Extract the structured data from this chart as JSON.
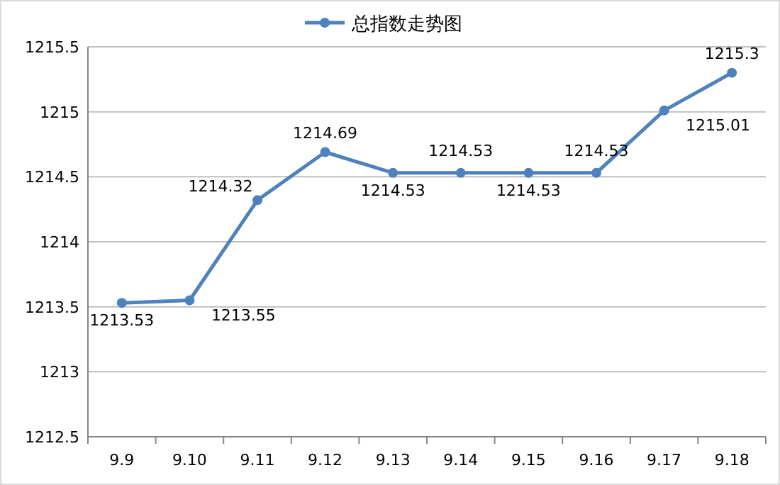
{
  "chart_data": {
    "type": "line",
    "categories": [
      "9.9",
      "9.10",
      "9.11",
      "9.12",
      "9.13",
      "9.14",
      "9.15",
      "9.16",
      "9.17",
      "9.18"
    ],
    "series": [
      {
        "name": "总指数走势图",
        "color": "#4f81bd",
        "values": [
          1213.53,
          1213.55,
          1214.32,
          1214.69,
          1214.53,
          1214.53,
          1214.53,
          1214.53,
          1215.01,
          1215.3
        ]
      }
    ],
    "ylim": [
      1212.5,
      1215.5
    ],
    "yticks": [
      1212.5,
      1213,
      1213.5,
      1214,
      1214.5,
      1215,
      1215.5
    ],
    "grid": "y",
    "legend": "top",
    "marker": "circle",
    "line_style": "solid",
    "data_labels": true
  }
}
